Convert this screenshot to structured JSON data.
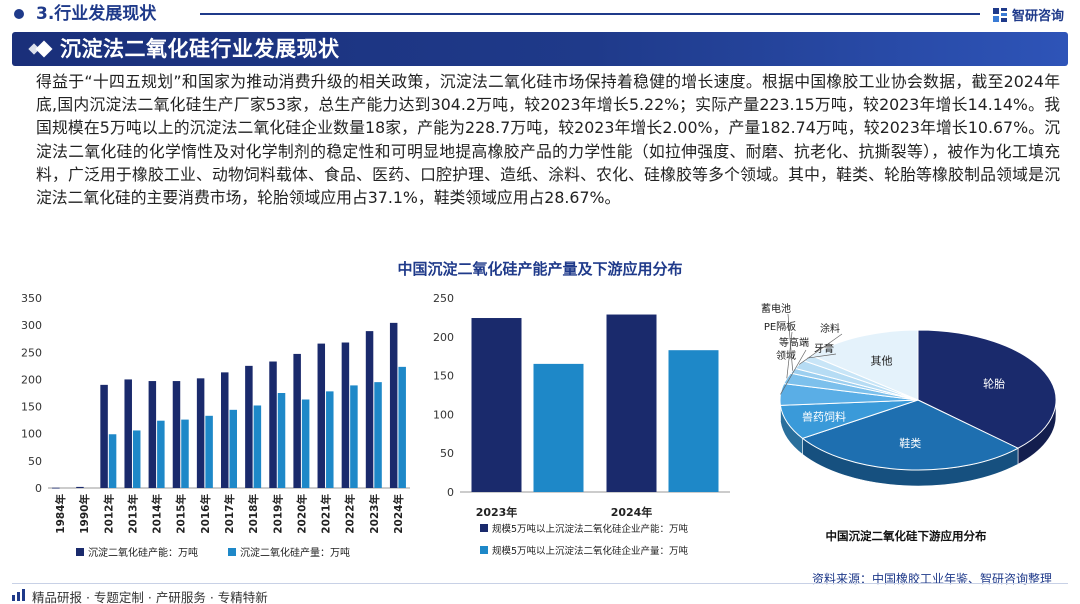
{
  "header": {
    "section_title": "3.行业发展现状",
    "logo_text": "智研咨询"
  },
  "banner": {
    "title": "沉淀法二氧化硅行业发展现状"
  },
  "body": {
    "paragraph": "得益于“十四五规划”和国家为推动消费升级的相关政策，沉淀法二氧化硅市场保持着稳健的增长速度。根据中国橡胶工业协会数据，截至2024年底,国内沉淀法二氧化硅生产厂家53家，总生产能力达到304.2万吨，较2023年增长5.22%；实际产量223.15万吨，较2023年增长14.14%。我国规模在5万吨以上的沉淀法二氧化硅企业数量18家，产能为228.7万吨，较2023年增长2.00%，产量182.74万吨，较2023年增长10.67%。沉淀法二氧化硅的化学惰性及对化学制剂的稳定性和可明显地提高橡胶产品的力学性能（如拉伸强度、耐磨、抗老化、抗撕裂等），被作为化工填充料，广泛用于橡胶工业、动物饲料载体、食品、医药、口腔护理、造纸、涂料、农化、硅橡胶等多个领域。其中，鞋类、轮胎等橡胶制品领域是沉淀法二氧化硅的主要消费市场，轮胎领域应用占37.1%，鞋类领域应用占28.67%。"
  },
  "figure_title": "中国沉淀二氧化硅产能产量及下游应用分布",
  "chart_data": [
    {
      "type": "bar",
      "title": "",
      "categories": [
        "1984年",
        "1990年",
        "2012年",
        "2013年",
        "2014年",
        "2015年",
        "2016年",
        "2017年",
        "2018年",
        "2019年",
        "2020年",
        "2021年",
        "2022年",
        "2023年",
        "2024年"
      ],
      "series": [
        {
          "name": "沉淀二氧化硅产能：万吨",
          "color": "#1a2a6c",
          "values": [
            0.5,
            2,
            190,
            200,
            197,
            197,
            202,
            213,
            225,
            233,
            247,
            266,
            268,
            289,
            304.2
          ]
        },
        {
          "name": "沉淀二氧化硅产量：万吨",
          "color": "#1e88c8",
          "values": [
            null,
            null,
            99,
            106,
            124,
            126,
            133,
            144,
            152,
            175,
            163,
            178,
            189,
            195,
            223.15
          ]
        }
      ],
      "ylim": [
        0,
        350
      ],
      "yticks": [
        0,
        50,
        100,
        150,
        200,
        250,
        300,
        350
      ],
      "legend_position": "bottom"
    },
    {
      "type": "bar",
      "title": "",
      "categories": [
        "2023年",
        "2024年"
      ],
      "series": [
        {
          "name": "规模5万吨以上沉淀法二氧化硅企业产能：万吨",
          "color": "#1a2a6c",
          "values": [
            224.2,
            228.7
          ]
        },
        {
          "name": "规模5万吨以上沉淀法二氧化硅企业产量：万吨",
          "color": "#1e88c8",
          "values": [
            165.1,
            182.74
          ]
        }
      ],
      "ylim": [
        0,
        250
      ],
      "yticks": [
        0,
        50,
        100,
        150,
        200,
        250
      ],
      "legend_position": "bottom"
    },
    {
      "type": "pie",
      "title": "中国沉淀二氧化硅下游应用分布",
      "slices": [
        {
          "label": "轮胎",
          "value": 37.1,
          "color": "#1a2a6c"
        },
        {
          "label": "鞋类",
          "value": 28.67,
          "color": "#1e6fb0"
        },
        {
          "label": "兽药饲料",
          "value": 8.0,
          "color": "#3a9ad9"
        },
        {
          "label": "等高端领域",
          "value": 5.0,
          "color": "#5aaee6"
        },
        {
          "label": "PE隔板",
          "value": 2.5,
          "color": "#7cc0ec"
        },
        {
          "label": "蓄电池",
          "value": 1.2,
          "color": "#9ccff0"
        },
        {
          "label": "涂料",
          "value": 2.0,
          "color": "#b6dcf4"
        },
        {
          "label": "牙膏",
          "value": 1.5,
          "color": "#c8e5f7"
        },
        {
          "label": "其他",
          "value": 14.03,
          "color": "#e4f2fb"
        }
      ]
    }
  ],
  "footer": {
    "tagline": "精品研报 · 专题定制 · 产研服务 · 专精特新",
    "source": "资料来源：中国橡胶工业年鉴、智研咨询整理"
  },
  "colors": {
    "brand": "#1f3a8a",
    "dark_bar": "#1a2a6c",
    "light_bar": "#1e88c8"
  }
}
